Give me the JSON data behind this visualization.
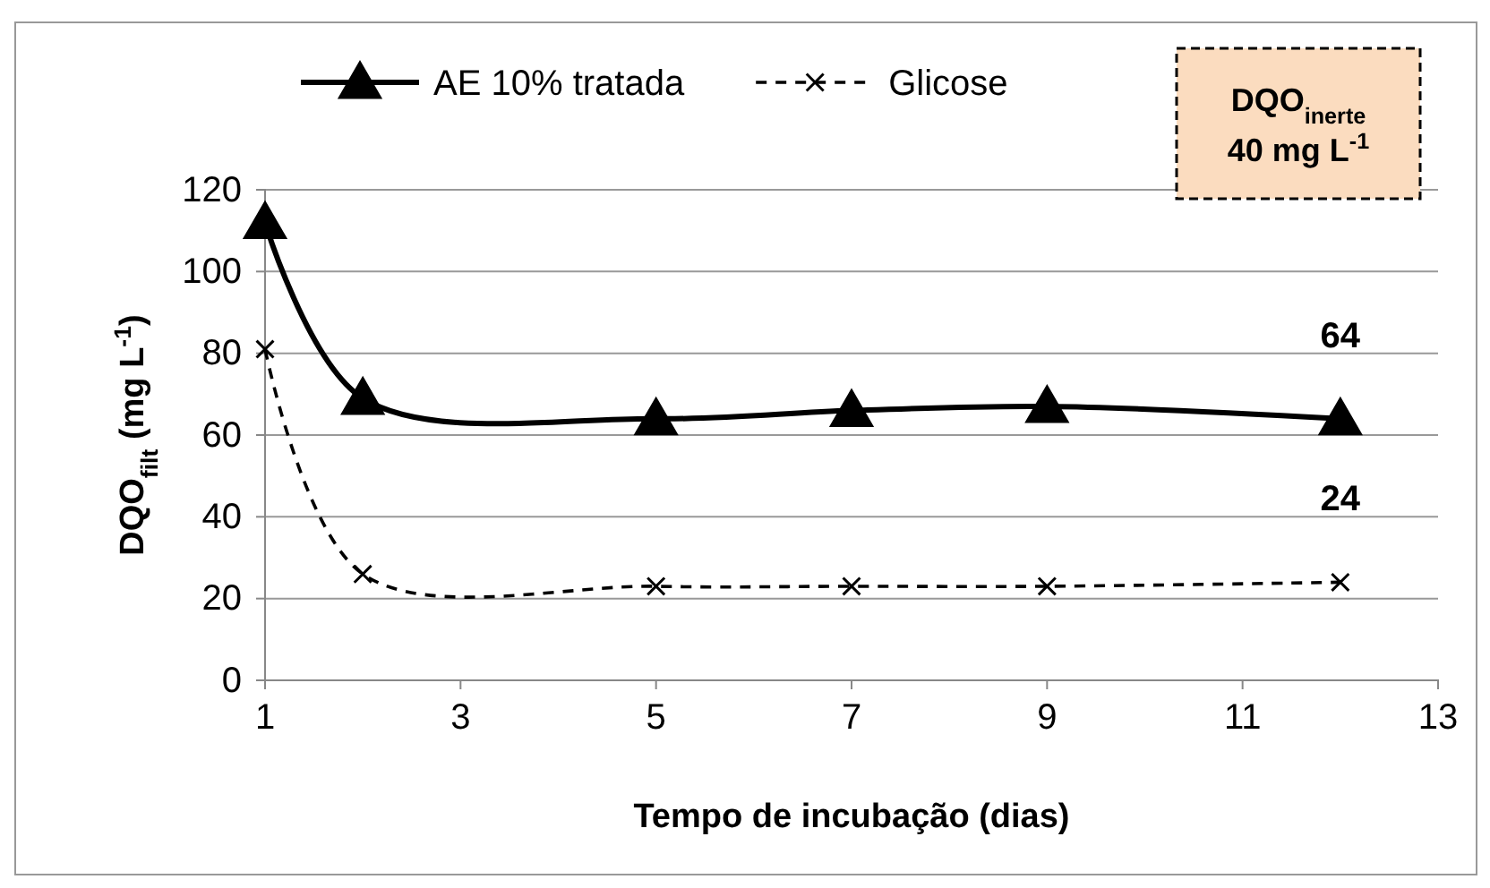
{
  "chart_data": {
    "type": "line",
    "xlabel": "Tempo de incubação (dias)",
    "ylabel": "DQO$_{filt}$ (mg L$^{-1}$)",
    "xlim": [
      1,
      13
    ],
    "xticks": [
      1,
      3,
      5,
      7,
      9,
      11,
      13
    ],
    "ylim": [
      0,
      120
    ],
    "yticks": [
      0,
      20,
      40,
      60,
      80,
      100,
      120
    ],
    "grid": "y",
    "legend": "top",
    "annotations": [
      "DQO$_{inerte}$ 40 mg L$^{-1}$"
    ],
    "series": [
      {
        "name": "AE 10% tratada",
        "color": "#000000",
        "marker": "triangle",
        "line_style": "solid",
        "x": [
          1,
          2,
          5,
          7,
          9,
          12
        ],
        "values": [
          112,
          69,
          64,
          66,
          67,
          64
        ],
        "value_labels": [
          null,
          null,
          null,
          null,
          null,
          "64"
        ]
      },
      {
        "name": "Glicose",
        "color": "#000000",
        "marker": "cross",
        "line_style": "dashed",
        "x": [
          1,
          2,
          5,
          7,
          9,
          12
        ],
        "values": [
          81,
          26,
          23,
          23,
          23,
          24
        ],
        "value_labels": [
          null,
          null,
          null,
          null,
          null,
          "24"
        ]
      }
    ]
  }
}
